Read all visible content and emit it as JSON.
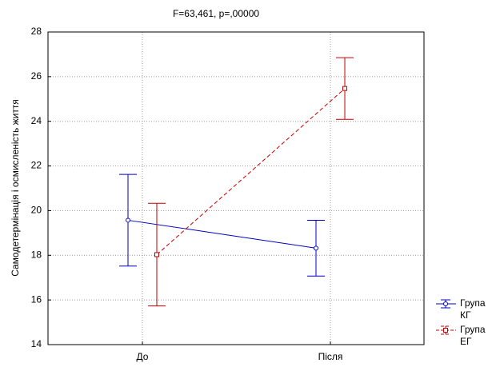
{
  "chart_data": {
    "type": "line",
    "title": "F=63,461, p=,00000",
    "y_label": "Самодетермінація і осмисленість життя",
    "categories": [
      "До",
      "Після"
    ],
    "series": [
      {
        "name": "Група КГ",
        "color": "#0000c0",
        "line_style": "solid",
        "marker": "circle",
        "values": [
          19.57,
          18.32
        ],
        "errors": [
          2.05,
          1.25
        ]
      },
      {
        "name": "Група ЕГ",
        "color": "#c00000",
        "line_style": "dashed",
        "marker": "square",
        "values": [
          18.03,
          25.47
        ],
        "errors": [
          2.3,
          1.38
        ]
      }
    ],
    "ylim": [
      14,
      28
    ],
    "yticks": [
      14,
      16,
      18,
      20,
      22,
      24,
      26,
      28
    ],
    "grid": true,
    "legend": "right"
  }
}
